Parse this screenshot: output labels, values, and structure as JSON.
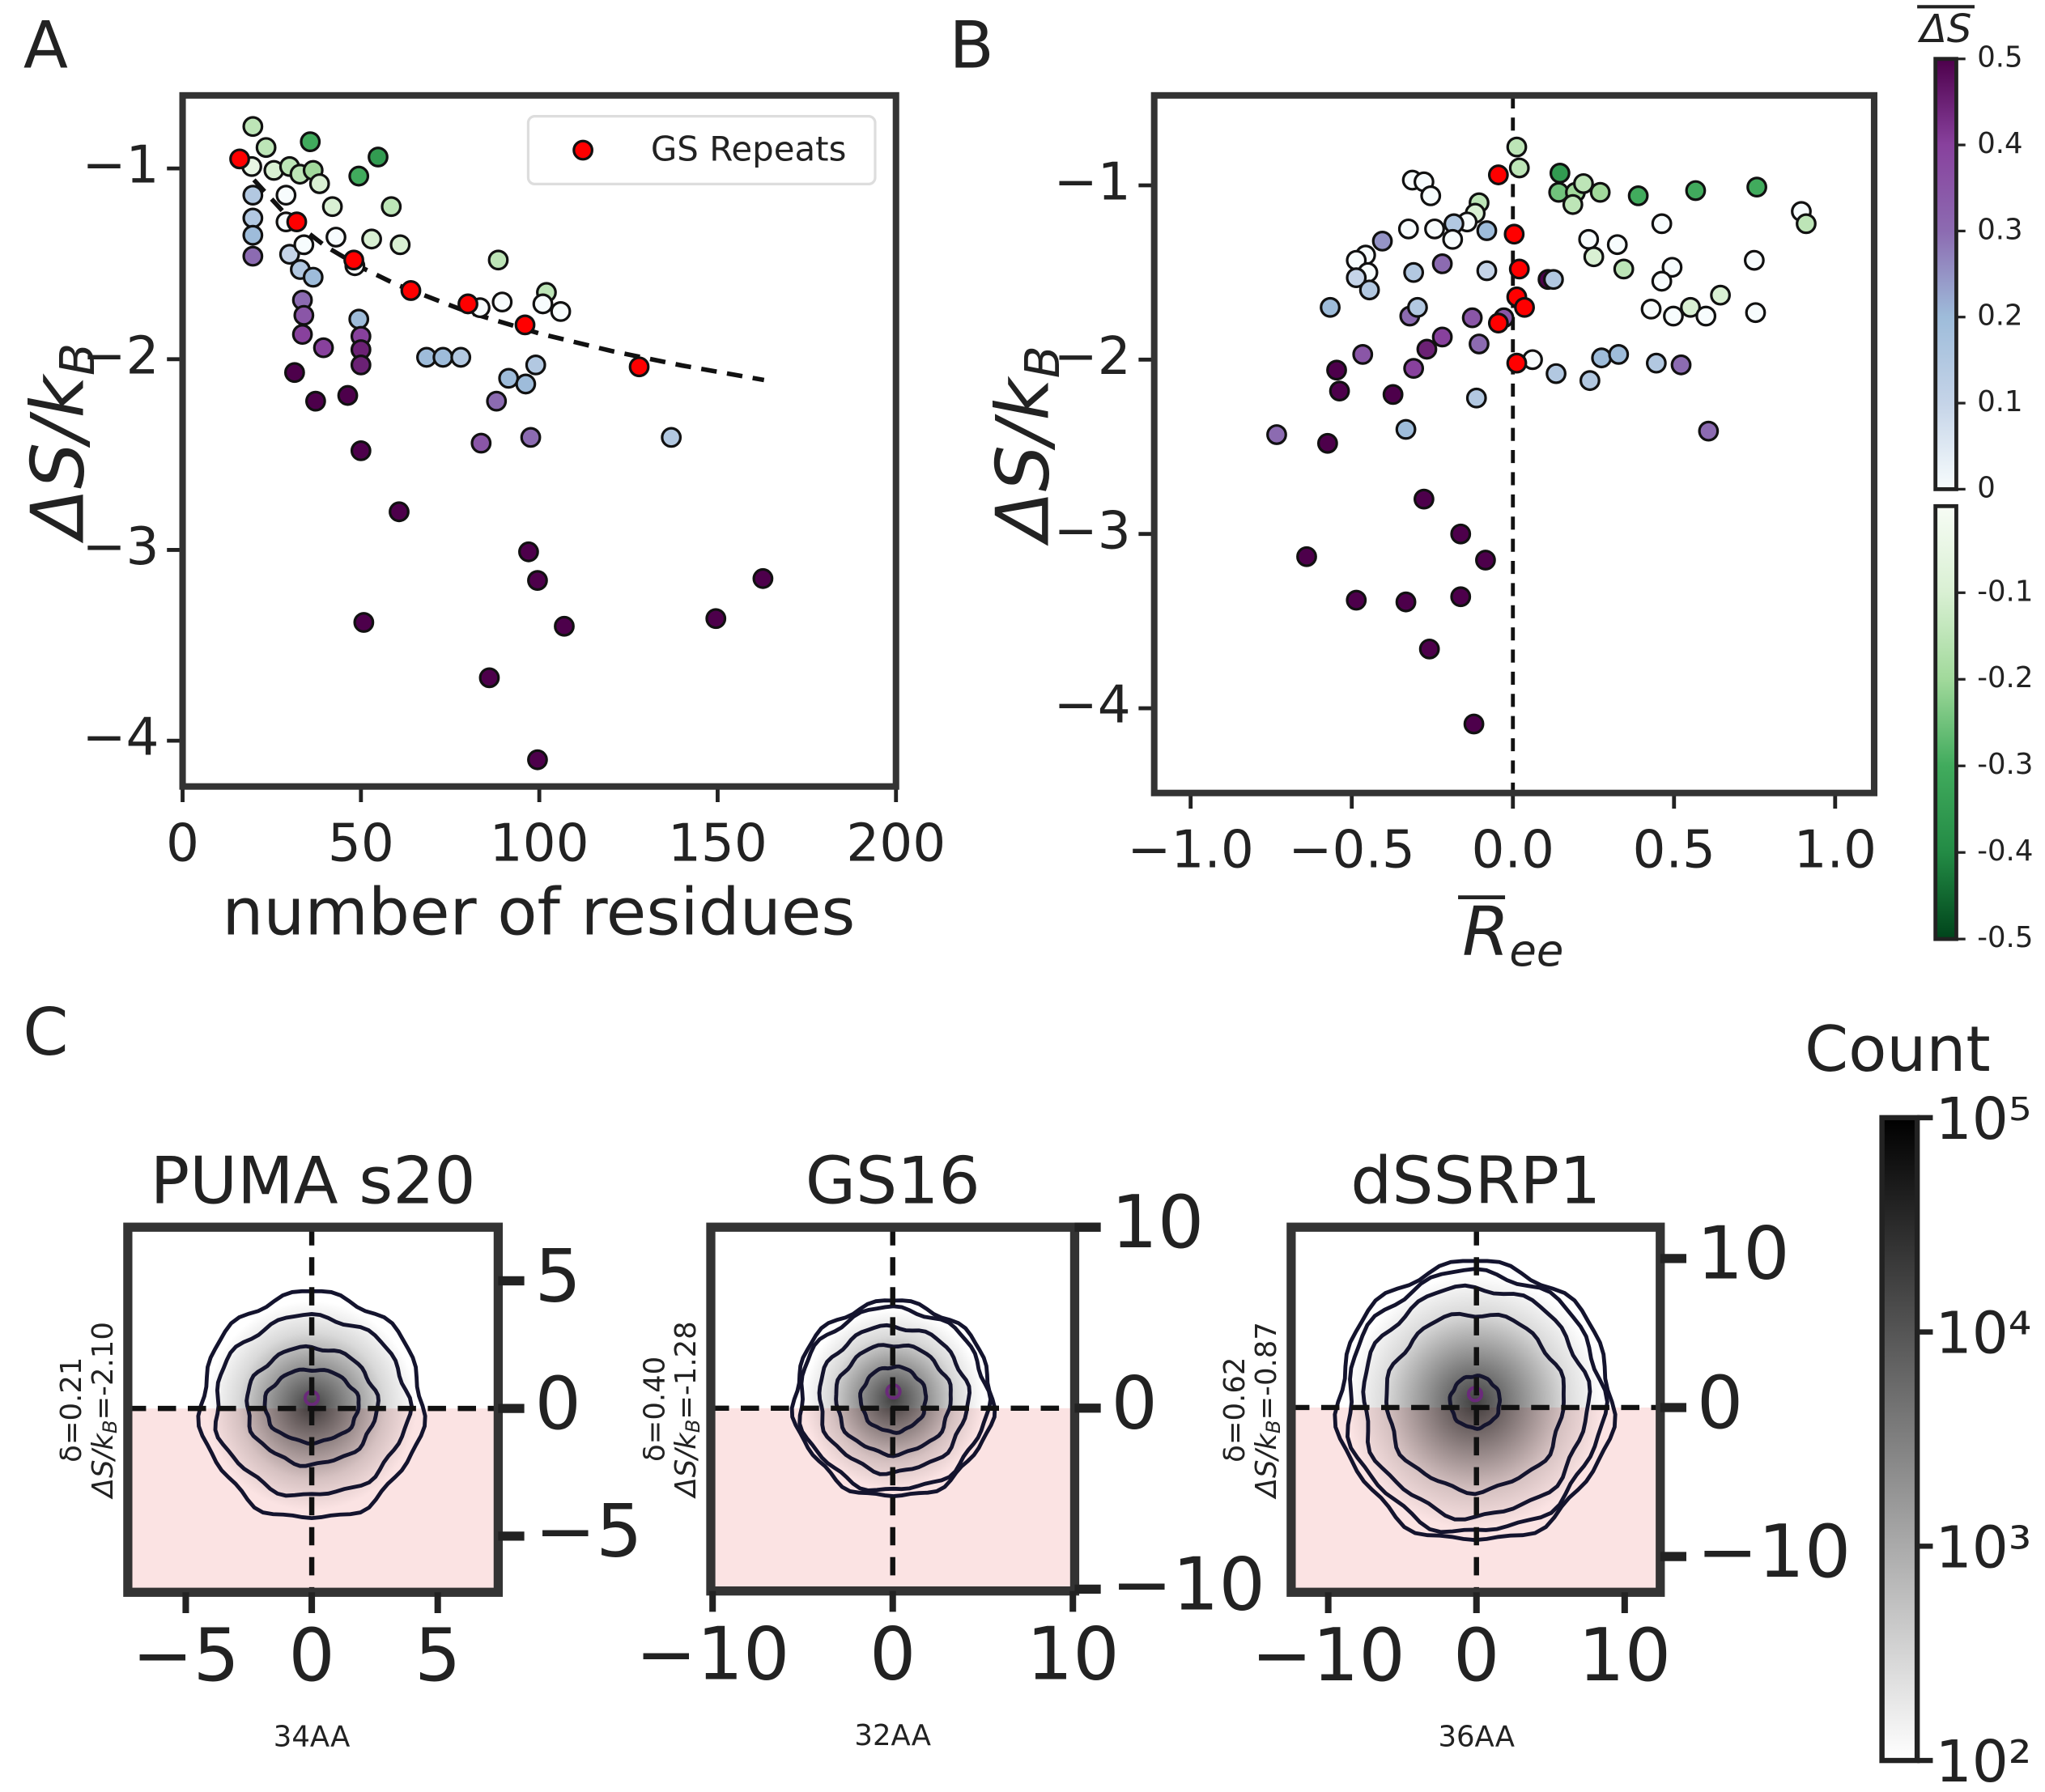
{
  "chart_data": [
    {
      "type": "scatter",
      "panel_label": "A",
      "xlabel": "number of residues",
      "ylabel": "ΔS/k",
      "ylabel_sub": "B",
      "xlim": [
        0,
        200
      ],
      "ylim": [
        -4.24,
        -0.617
      ],
      "xticks": [
        0,
        50,
        100,
        150,
        200
      ],
      "yticks": [
        {
          "value": -1,
          "label": "−1"
        },
        {
          "value": -2,
          "label": "−2"
        },
        {
          "value": -3,
          "label": "−3"
        },
        {
          "value": -4,
          "label": "−4"
        }
      ],
      "legend": "upper right",
      "fit": {
        "x": [
          20,
          30,
          40,
          50,
          60,
          80,
          100,
          120,
          140,
          163
        ],
        "y": [
          -1.06,
          -1.263,
          -1.407,
          -1.518,
          -1.609,
          -1.753,
          -1.865,
          -1.956,
          -2.033,
          -2.109
        ],
        "color": "#111111"
      },
      "series": [
        {
          "x": [
            19.7,
            23.4,
            35.8,
            54.8,
            49.4,
            19.4,
            25.6,
            30,
            32.9,
            36.6,
            38.4,
            42,
            58.5,
            61,
            53,
            43,
            48.3,
            29,
            19.7,
            19.7,
            19.7,
            19.7,
            29,
            30,
            33,
            36.6,
            34,
            33.6,
            34,
            33.6,
            39.5,
            31.4,
            49.4,
            50,
            50,
            50,
            46.3,
            37.3,
            50,
            60.7,
            50.8,
            68.4,
            73,
            78,
            83.7,
            88.5,
            89.6,
            83.4,
            91.4,
            96.2,
            88,
            97.6,
            99,
            102,
            106,
            101,
            137,
            97,
            99.5,
            107,
            86,
            99.5,
            149.5,
            162.7
          ],
          "y": [
            -0.78,
            -0.89,
            -0.86,
            -0.94,
            -1.04,
            -0.99,
            -1.01,
            -0.99,
            -1.03,
            -1.01,
            -1.08,
            -1.2,
            -1.2,
            -1.4,
            -1.37,
            -1.36,
            -1.51,
            -1.14,
            -1.14,
            -1.26,
            -1.35,
            -1.46,
            -1.28,
            -1.45,
            -1.53,
            -1.57,
            -1.4,
            -1.69,
            -1.77,
            -1.87,
            -1.94,
            -2.07,
            -1.79,
            -1.88,
            -1.95,
            -2.03,
            -2.19,
            -2.22,
            -2.48,
            -2.8,
            -3.38,
            -1.99,
            -1.99,
            -1.99,
            -2.44,
            -1.48,
            -1.7,
            -1.73,
            -2.1,
            -2.13,
            -2.22,
            -2.41,
            -2.03,
            -1.65,
            -1.75,
            -1.71,
            -2.41,
            -3.01,
            -3.16,
            -3.4,
            -3.67,
            -4.1,
            -3.36,
            -3.15
          ],
          "c": [
            -0.15,
            -0.15,
            -0.3,
            -0.35,
            -0.3,
            -0.05,
            -0.1,
            -0.15,
            -0.15,
            -0.2,
            -0.1,
            -0.1,
            -0.15,
            -0.1,
            -0.1,
            0,
            0,
            0,
            0.15,
            0.15,
            0.2,
            0.3,
            0,
            0.1,
            0.15,
            0.2,
            0,
            0.3,
            0.35,
            0.4,
            0.4,
            0.5,
            0.2,
            0.4,
            0.45,
            0.45,
            0.5,
            0.5,
            0.5,
            0.5,
            0.5,
            0.2,
            0.2,
            0.15,
            0.35,
            -0.15,
            0,
            0,
            0.2,
            0.2,
            0.3,
            0.3,
            0.15,
            -0.15,
            0,
            0,
            0.15,
            0.5,
            0.5,
            0.5,
            0.5,
            0.5,
            0.5,
            0.5
          ]
        },
        {
          "name": "GS Repeats",
          "color": "#ff0000",
          "x": [
            16,
            32,
            48,
            64,
            80,
            96,
            128
          ],
          "y": [
            -0.95,
            -1.28,
            -1.48,
            -1.64,
            -1.71,
            -1.82,
            -2.04
          ]
        }
      ]
    },
    {
      "type": "scatter",
      "panel_label": "B",
      "xlabel": "R",
      "xlabel_sub": "ee",
      "ylabel": "ΔS/k",
      "ylabel_sub": "B",
      "xlim": [
        -1.113,
        1.121
      ],
      "ylim": [
        -4.486,
        -0.484
      ],
      "xticks": [
        {
          "value": -1,
          "label": "−1.0"
        },
        {
          "value": -0.5,
          "label": "−0.5"
        },
        {
          "value": 0,
          "label": "0.0"
        },
        {
          "value": 0.5,
          "label": "0.5"
        },
        {
          "value": 1,
          "label": "1.0"
        }
      ],
      "yticks": [
        {
          "value": -1,
          "label": "−1"
        },
        {
          "value": -2,
          "label": "−2"
        },
        {
          "value": -3,
          "label": "−3"
        },
        {
          "value": -4,
          "label": "−4"
        }
      ],
      "vlines": [
        0
      ],
      "series": [
        {
          "x": [
            0.012,
            0.02,
            0.146,
            0.142,
            0.194,
            0.219,
            0.186,
            0.271,
            0.389,
            0.567,
            0.757,
            0.895,
            0.91,
            -0.312,
            -0.276,
            -0.255,
            -0.105,
            -0.117,
            -0.142,
            -0.183,
            -0.081,
            -0.187,
            -0.324,
            -0.243,
            -0.405,
            -0.457,
            -0.486,
            -0.45,
            -0.486,
            -0.445,
            -0.567,
            -0.308,
            -0.219,
            -0.081,
            0.109,
            0.126,
            -0.32,
            -0.296,
            -0.126,
            -0.028,
            -0.219,
            -0.267,
            -0.466,
            -0.105,
            -0.547,
            -0.308,
            -0.538,
            -0.372,
            -0.113,
            -0.332,
            -0.733,
            -0.575,
            0.061,
            0.134,
            0.239,
            0.275,
            0.328,
            0.445,
            0.522,
            0.607,
            0.235,
            0.251,
            0.324,
            0.344,
            0.462,
            0.494,
            0.462,
            0.429,
            0.498,
            0.551,
            0.599,
            0.644,
            0.749,
            0.753,
            -0.276,
            -0.162,
            -0.085,
            -0.64,
            -0.486,
            -0.332,
            -0.162,
            -0.259,
            -0.121
          ],
          "y": [
            -0.78,
            -0.9,
            -0.93,
            -1.04,
            -1.04,
            -0.99,
            -1.11,
            -1.04,
            -1.06,
            -1.03,
            -1.01,
            -1.15,
            -1.22,
            -0.97,
            -0.98,
            -1.06,
            -1.1,
            -1.16,
            -1.21,
            -1.22,
            -1.26,
            -1.31,
            -1.25,
            -1.25,
            -1.32,
            -1.4,
            -1.43,
            -1.5,
            -1.53,
            -1.6,
            -1.7,
            -1.5,
            -1.45,
            -1.49,
            -1.54,
            -1.54,
            -1.75,
            -1.7,
            -1.76,
            -1.76,
            -1.87,
            -1.94,
            -1.97,
            -1.91,
            -2.06,
            -2.05,
            -2.18,
            -2.2,
            -2.22,
            -2.4,
            -2.43,
            -2.48,
            -2.0,
            -2.08,
            -2.12,
            -1.99,
            -1.97,
            -2.02,
            -2.03,
            -2.41,
            -1.31,
            -1.41,
            -1.34,
            -1.48,
            -1.22,
            -1.47,
            -1.55,
            -1.71,
            -1.75,
            -1.7,
            -1.75,
            -1.63,
            -1.43,
            -1.73,
            -2.8,
            -3.0,
            -3.15,
            -3.13,
            -3.38,
            -3.39,
            -3.36,
            -3.66,
            -4.09
          ],
          "c": [
            -0.15,
            -0.15,
            -0.35,
            -0.25,
            -0.2,
            -0.15,
            -0.15,
            -0.2,
            -0.3,
            -0.3,
            -0.3,
            0,
            -0.15,
            0,
            0,
            0,
            -0.15,
            -0.1,
            0,
            0.15,
            0.2,
            0,
            0,
            0,
            0.25,
            0,
            0,
            0,
            0.1,
            0.15,
            0.2,
            0.15,
            0.3,
            0.1,
            0.5,
            0.15,
            0.3,
            0.15,
            0.35,
            0.35,
            0.4,
            0.45,
            0.35,
            0.3,
            0.5,
            0.4,
            0.5,
            0.5,
            0.15,
            0.2,
            0.3,
            0.5,
            0,
            0.15,
            0.15,
            0.2,
            0.2,
            0.15,
            0.3,
            0.3,
            0,
            -0.1,
            0,
            -0.15,
            0,
            0,
            0,
            0,
            0,
            -0.1,
            0,
            -0.1,
            0,
            0,
            0.5,
            0.5,
            0.5,
            0.5,
            0.5,
            0.5,
            0.5,
            0.5,
            0.5
          ]
        },
        {
          "color": "#ff0000",
          "x": [
            -0.045,
            0.004,
            0.02,
            0.012,
            0.036,
            -0.045,
            0.012
          ],
          "y": [
            -0.94,
            -1.28,
            -1.48,
            -1.64,
            -1.7,
            -1.79,
            -2.02
          ]
        }
      ]
    },
    {
      "type": "colorbar",
      "title": "ΔS",
      "upper": {
        "lim": [
          0,
          0.5
        ],
        "ticks": [
          0,
          0.1,
          0.2,
          0.3,
          0.4,
          0.5
        ],
        "colors": [
          "#f7fcfd",
          "#c5d4e8",
          "#9ebcda",
          "#8c6bb1",
          "#88419d",
          "#4d004b"
        ]
      },
      "lower": {
        "lim": [
          -0.5,
          0
        ],
        "ticks": [
          -0.5,
          -0.4,
          -0.3,
          -0.2,
          -0.1
        ],
        "colors": [
          "#00441b",
          "#238b45",
          "#41ab5d",
          "#a1d99b",
          "#d9f0d3",
          "#f7fcf5"
        ]
      }
    },
    {
      "type": "density",
      "panel_label": "C",
      "title": "PUMA s20",
      "xlabel": "34AA",
      "delta_label": "δ=0.21",
      "ds_label": "ΔS/k",
      "ds_sub": "B",
      "ds_value": "=-2.10",
      "xlim": [
        -7.3,
        7.4
      ],
      "ylim": [
        -7.2,
        7.1
      ],
      "xticks": [
        {
          "value": -5,
          "label": "−5"
        },
        0,
        5
      ],
      "yticks": [
        {
          "value": -5,
          "label": "−5"
        },
        0,
        5
      ],
      "hlines": [
        0
      ],
      "vlines": [
        0
      ]
    },
    {
      "type": "density",
      "title": "GS16",
      "xlabel": "32AA",
      "delta_label": "δ=0.40",
      "ds_label": "ΔS/k",
      "ds_sub": "B",
      "ds_value": "=-1.28",
      "xlim": [
        -10.1,
        10.1
      ],
      "ylim": [
        -10.1,
        10.0
      ],
      "xticks": [
        {
          "value": -10,
          "label": "−10"
        },
        0,
        10
      ],
      "yticks": [
        {
          "value": -10,
          "label": "−10"
        },
        0,
        10
      ],
      "hlines": [
        0
      ],
      "vlines": [
        0
      ]
    },
    {
      "type": "density",
      "title": "dSSRP1",
      "xlabel": "36AA",
      "delta_label": "δ=0.62",
      "ds_label": "ΔS/k",
      "ds_sub": "B",
      "ds_value": "=-0.87",
      "xlim": [
        -12.5,
        12.4
      ],
      "ylim": [
        -12.4,
        12.1
      ],
      "xticks": [
        {
          "value": -10,
          "label": "−10"
        },
        0,
        10
      ],
      "yticks": [
        {
          "value": -10,
          "label": "−10"
        },
        0,
        10
      ],
      "hlines": [
        0
      ],
      "vlines": [
        0
      ]
    },
    {
      "type": "logcolorbar",
      "title": "Count",
      "lim": [
        100,
        100000
      ],
      "log": true,
      "ticks": [
        {
          "value": 100,
          "label": "10²"
        },
        {
          "value": 1000,
          "label": "10³"
        },
        {
          "value": 10000,
          "label": "10⁴"
        },
        {
          "value": 100000,
          "label": "10⁵"
        }
      ],
      "colors": [
        "#ffffff",
        "#000000"
      ]
    }
  ]
}
